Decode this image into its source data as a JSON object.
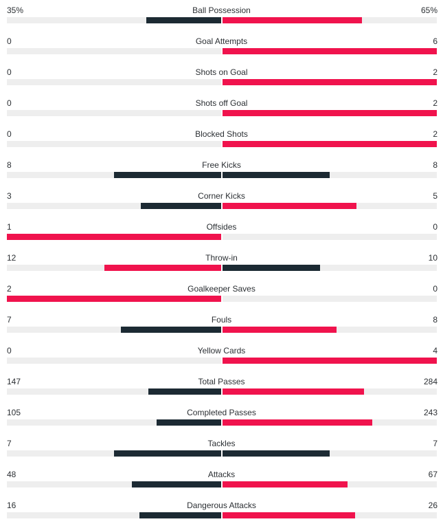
{
  "colors": {
    "leader": "#f0134d",
    "trailer": "#1c2a33",
    "track": "#eeeeee"
  },
  "stats": [
    {
      "label": "Ball Possession",
      "home": "35%",
      "away": "65%",
      "home_fraction": 0.35,
      "away_fraction": 0.65
    },
    {
      "label": "Goal Attempts",
      "home": "0",
      "away": "6",
      "home_fraction": 0,
      "away_fraction": 1.0
    },
    {
      "label": "Shots on Goal",
      "home": "0",
      "away": "2",
      "home_fraction": 0,
      "away_fraction": 1.0
    },
    {
      "label": "Shots off Goal",
      "home": "0",
      "away": "2",
      "home_fraction": 0,
      "away_fraction": 1.0
    },
    {
      "label": "Blocked Shots",
      "home": "0",
      "away": "2",
      "home_fraction": 0,
      "away_fraction": 1.0
    },
    {
      "label": "Free Kicks",
      "home": "8",
      "away": "8",
      "home_fraction": 0.5,
      "away_fraction": 0.5
    },
    {
      "label": "Corner Kicks",
      "home": "3",
      "away": "5",
      "home_fraction": 0.375,
      "away_fraction": 0.625
    },
    {
      "label": "Offsides",
      "home": "1",
      "away": "0",
      "home_fraction": 1.0,
      "away_fraction": 0
    },
    {
      "label": "Throw-in",
      "home": "12",
      "away": "10",
      "home_fraction": 0.545,
      "away_fraction": 0.455
    },
    {
      "label": "Goalkeeper Saves",
      "home": "2",
      "away": "0",
      "home_fraction": 1.0,
      "away_fraction": 0
    },
    {
      "label": "Fouls",
      "home": "7",
      "away": "8",
      "home_fraction": 0.467,
      "away_fraction": 0.533
    },
    {
      "label": "Yellow Cards",
      "home": "0",
      "away": "4",
      "home_fraction": 0,
      "away_fraction": 1.0
    },
    {
      "label": "Total Passes",
      "home": "147",
      "away": "284",
      "home_fraction": 0.341,
      "away_fraction": 0.659
    },
    {
      "label": "Completed Passes",
      "home": "105",
      "away": "243",
      "home_fraction": 0.302,
      "away_fraction": 0.698
    },
    {
      "label": "Tackles",
      "home": "7",
      "away": "7",
      "home_fraction": 0.5,
      "away_fraction": 0.5
    },
    {
      "label": "Attacks",
      "home": "48",
      "away": "67",
      "home_fraction": 0.417,
      "away_fraction": 0.583
    },
    {
      "label": "Dangerous Attacks",
      "home": "16",
      "away": "26",
      "home_fraction": 0.381,
      "away_fraction": 0.619
    }
  ]
}
